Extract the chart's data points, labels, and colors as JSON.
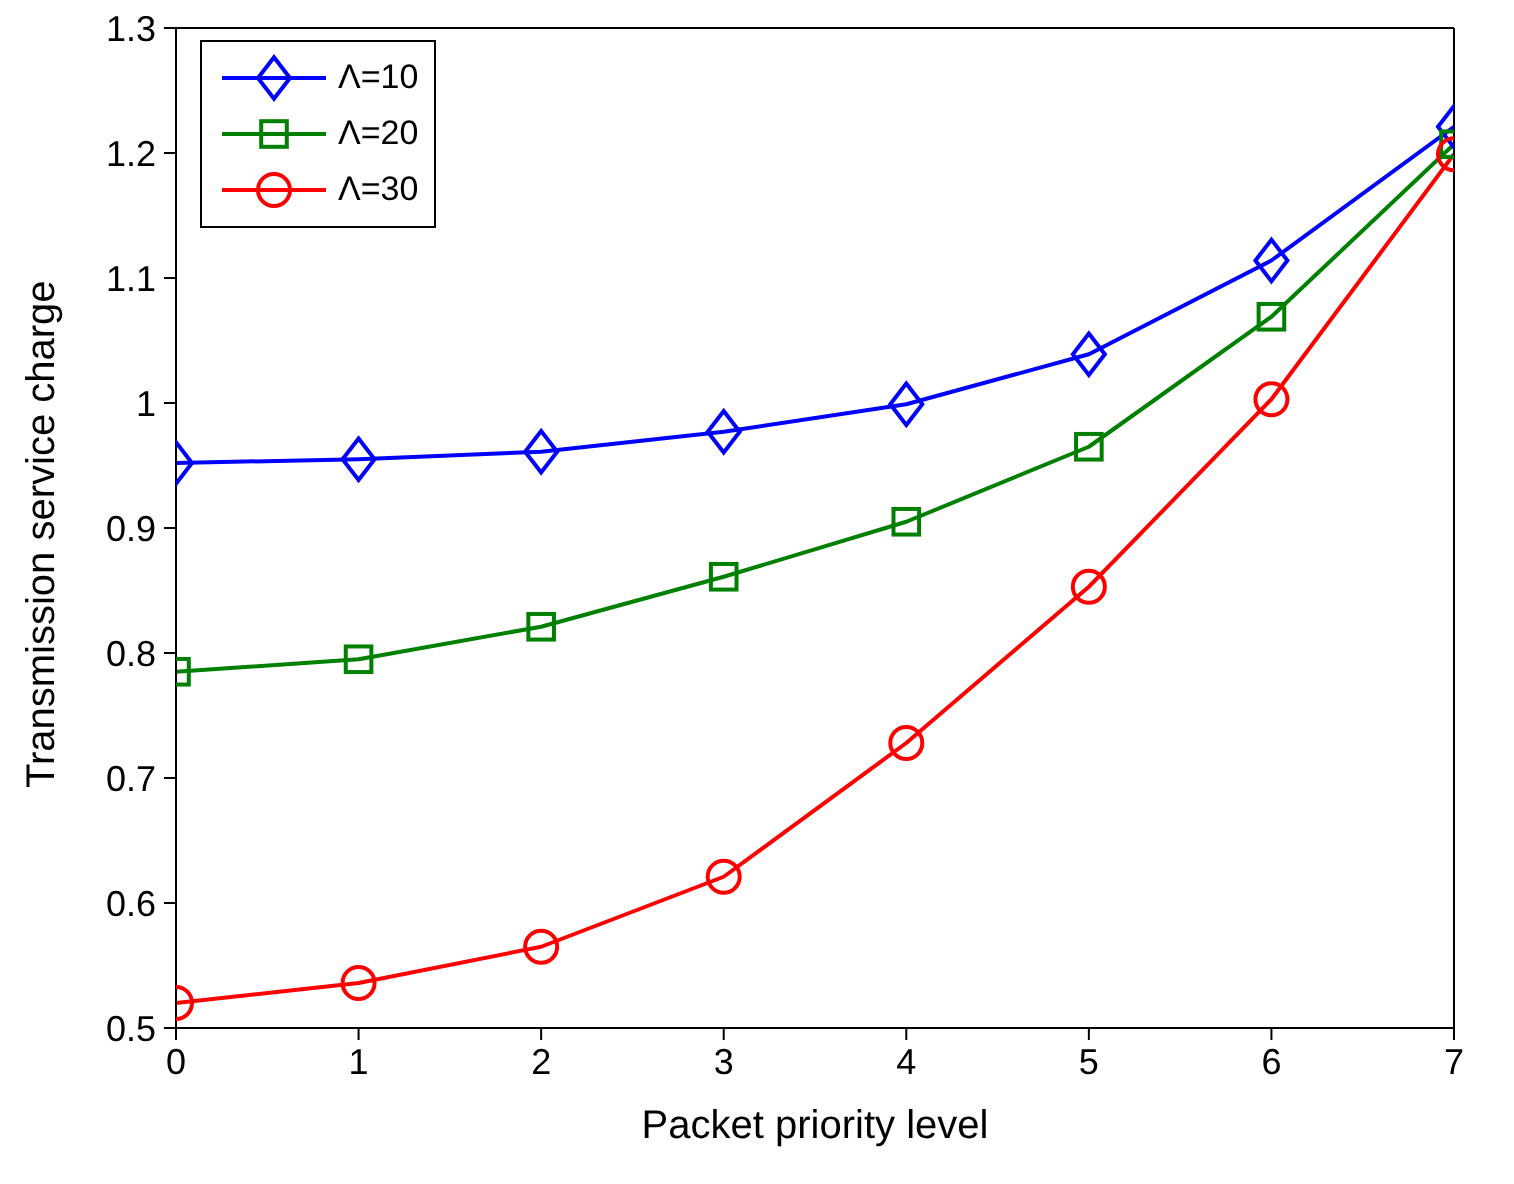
{
  "chart_data": {
    "type": "line",
    "xlabel": "Packet priority level",
    "ylabel": "Transmission service charge",
    "x": [
      0,
      1,
      2,
      3,
      4,
      5,
      6,
      7
    ],
    "xlim": [
      0,
      7
    ],
    "xticks": [
      0,
      1,
      2,
      3,
      4,
      5,
      6,
      7
    ],
    "ylim": [
      0.5,
      1.3
    ],
    "yticks": [
      0.5,
      0.6,
      0.7,
      0.8,
      0.9,
      1,
      1.1,
      1.2,
      1.3
    ],
    "grid": false,
    "legend": "top left",
    "line_style": "solid",
    "series": [
      {
        "name": "Λ=10",
        "color": "#0000ff",
        "marker": "diamond",
        "values": [
          0.952,
          0.955,
          0.961,
          0.977,
          0.999,
          1.039,
          1.114,
          1.221
        ]
      },
      {
        "name": "Λ=20",
        "color": "#008000",
        "marker": "square",
        "values": [
          0.785,
          0.795,
          0.821,
          0.861,
          0.905,
          0.965,
          1.069,
          1.207
        ]
      },
      {
        "name": "Λ=30",
        "color": "#ff0000",
        "marker": "circle",
        "values": [
          0.52,
          0.536,
          0.565,
          0.621,
          0.728,
          0.853,
          1.003,
          1.199
        ]
      }
    ]
  }
}
